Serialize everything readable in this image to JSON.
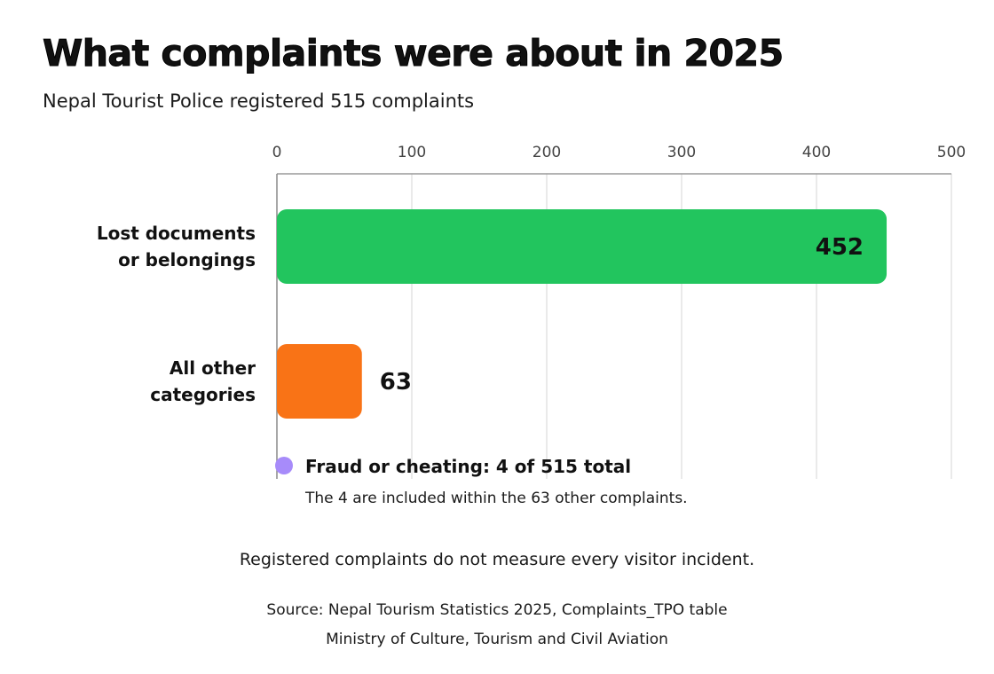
{
  "header": {
    "title": "What complaints were about in 2025",
    "subtitle": "Nepal Tourist Police registered 515 complaints"
  },
  "chart_data": {
    "type": "bar",
    "orientation": "horizontal",
    "categories": [
      "Lost documents or belongings",
      "All other categories"
    ],
    "category_lines": [
      [
        "Lost documents",
        "or belongings"
      ],
      [
        "All other",
        "categories"
      ]
    ],
    "values": [
      452,
      63
    ],
    "value_labels": [
      "452",
      "63"
    ],
    "colors": [
      "#22c55e",
      "#f97316"
    ],
    "xlim": [
      0,
      500
    ],
    "xticks": [
      0,
      100,
      200,
      300,
      400,
      500
    ],
    "xtick_labels": [
      "0",
      "100",
      "200",
      "300",
      "400",
      "500"
    ],
    "xaxis_position": "top",
    "grid": true,
    "annotation": {
      "marker_color": "#a78bfa",
      "label": "Fraud or cheating: 4 of 515 total",
      "detail": "The 4 are included within the 63 other complaints."
    }
  },
  "footer": {
    "disclaimer": "Registered complaints do not measure every visitor incident.",
    "source": "Source: Nepal Tourism Statistics 2025, Complaints_TPO table",
    "publisher": "Ministry of Culture, Tourism and Civil Aviation"
  }
}
